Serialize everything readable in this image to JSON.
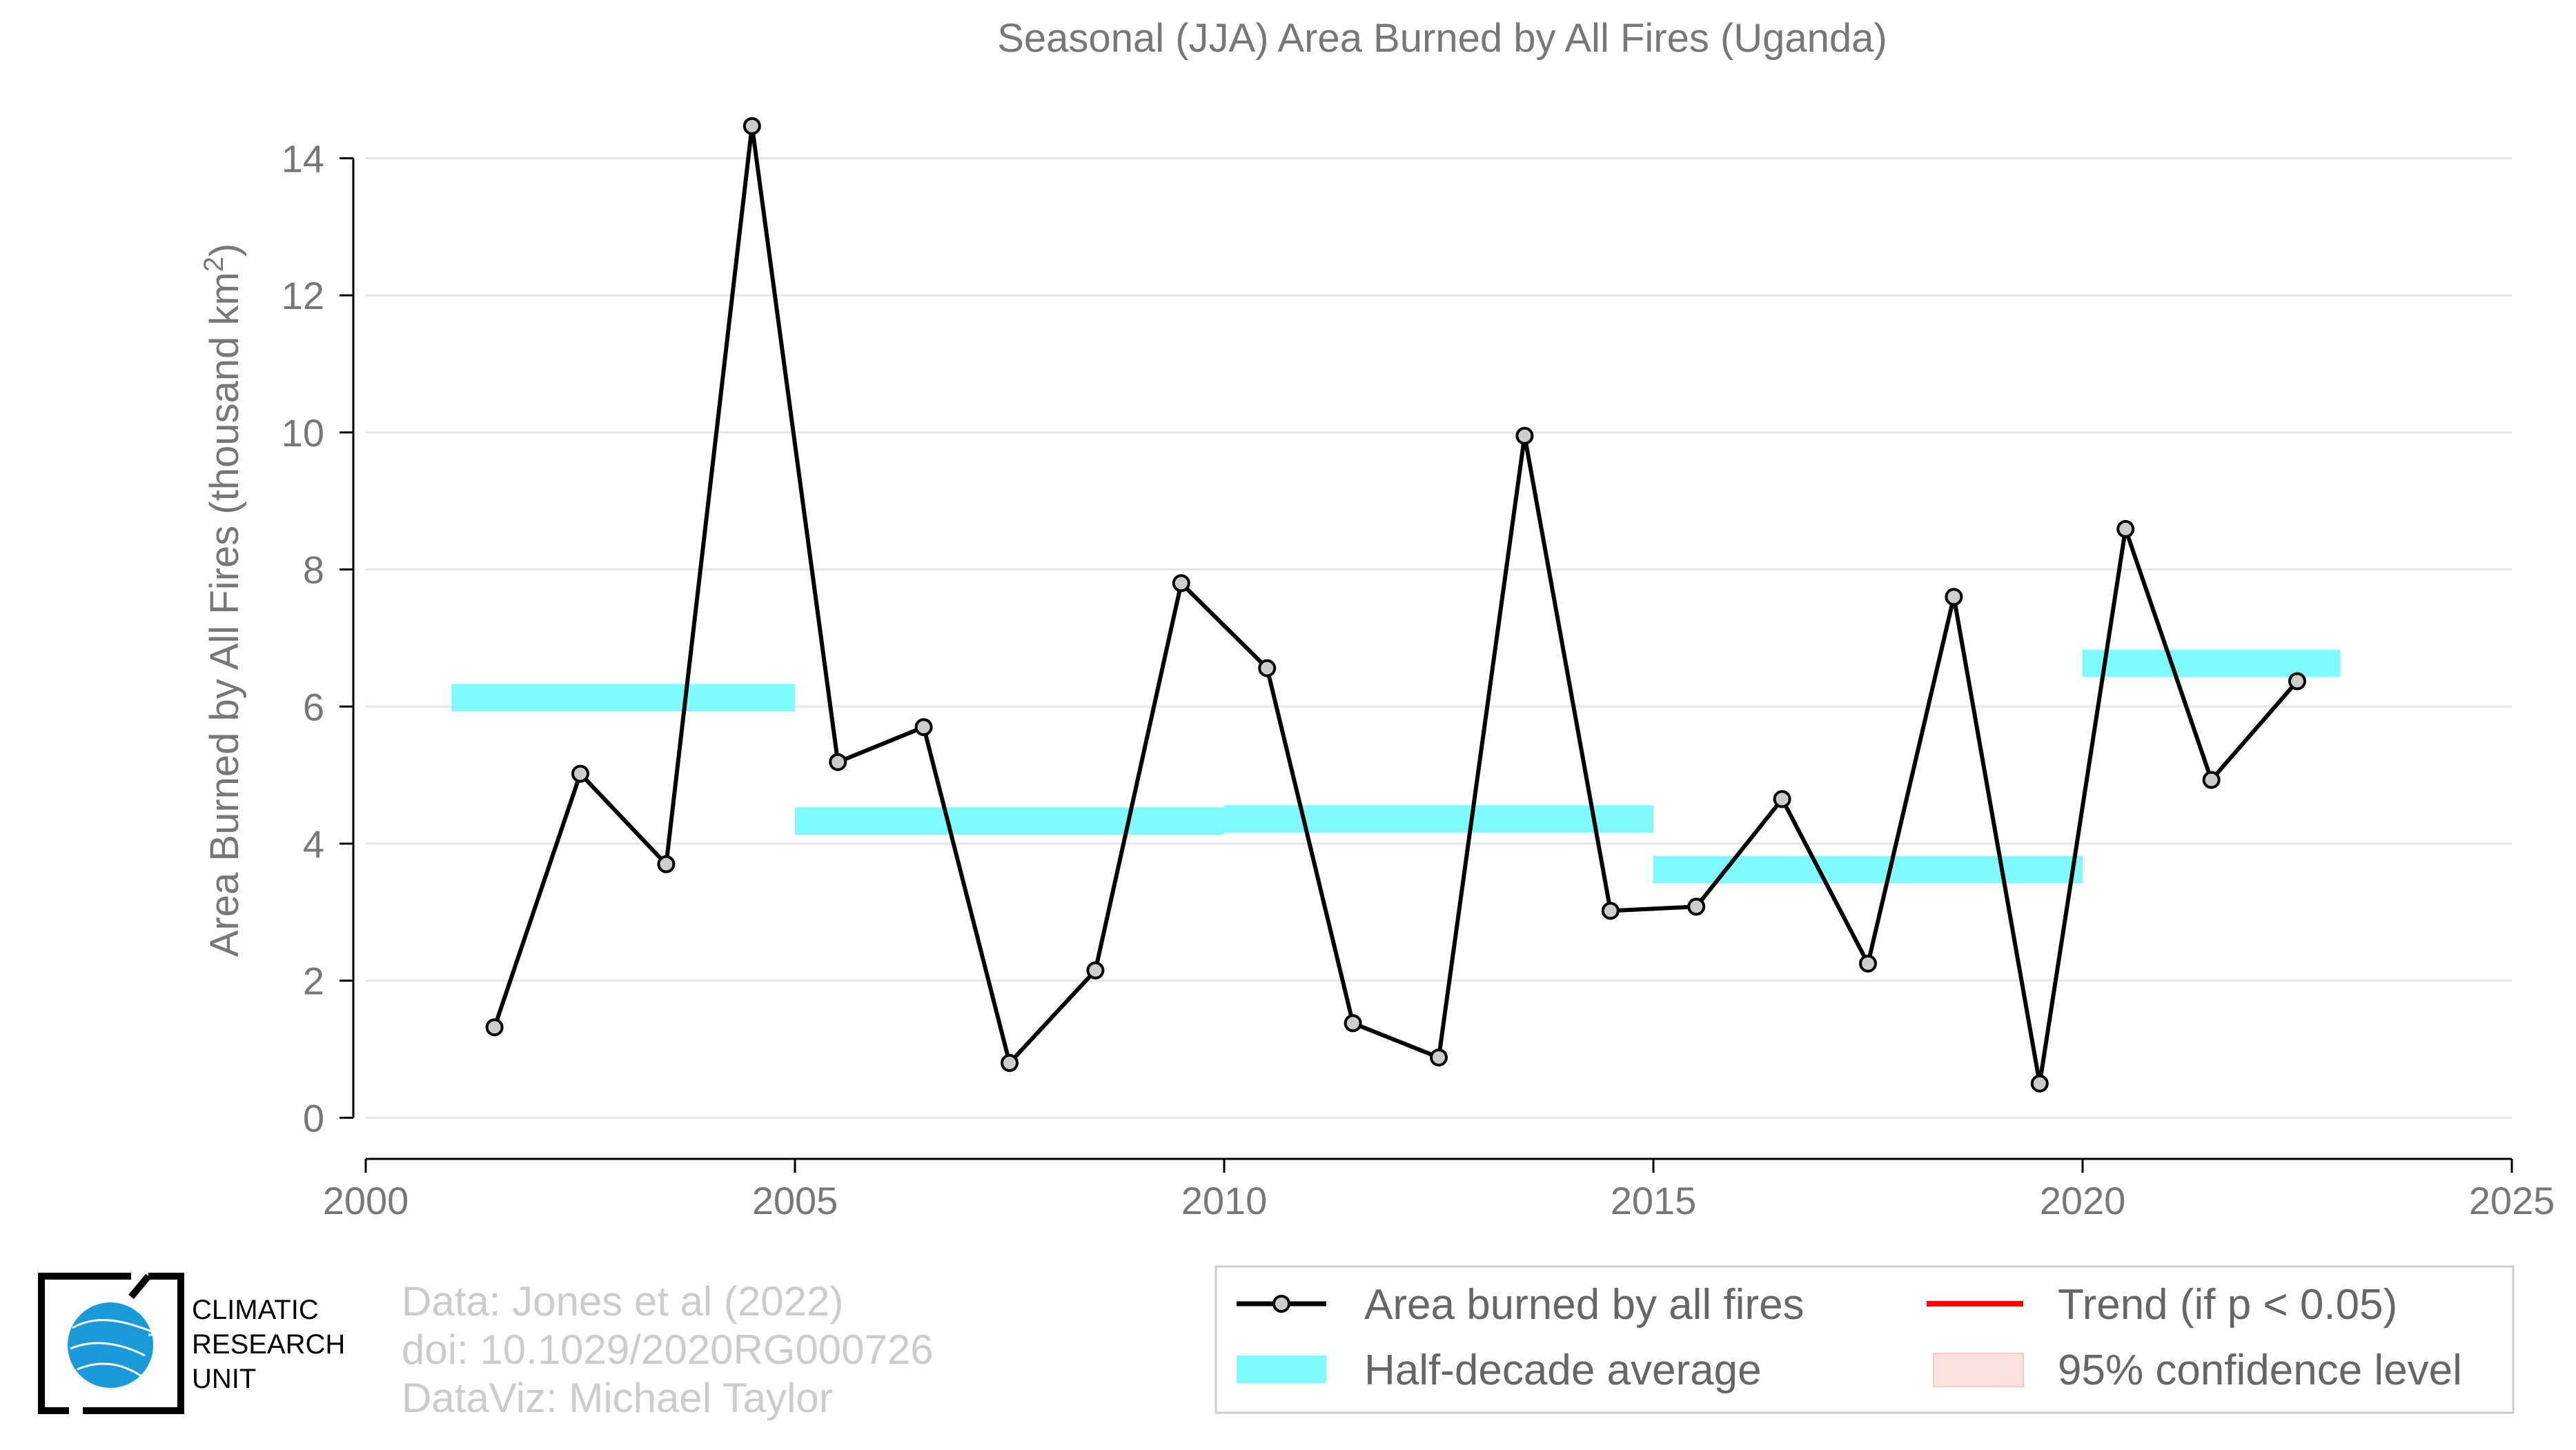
{
  "chart_data": {
    "type": "line",
    "title": "Seasonal (JJA) Area Burned by All Fires (Uganda)",
    "ylabel": "Area Burned by All Fires (thousand km",
    "ylabel_sup": "2",
    "ylabel_close": ")",
    "xlabel": "",
    "xlim": [
      2000,
      2025
    ],
    "ylim": [
      -0.6,
      14.9
    ],
    "x_ticks": [
      2000,
      2005,
      2010,
      2015,
      2020,
      2025
    ],
    "y_ticks": [
      0,
      2,
      4,
      6,
      8,
      10,
      12,
      14
    ],
    "grid": true,
    "series": [
      {
        "name": "Area burned by all fires",
        "color": "#000000",
        "marker_fill": "#cccccc",
        "x": [
          2001.5,
          2002.5,
          2003.5,
          2004.5,
          2005.5,
          2006.5,
          2007.5,
          2008.5,
          2009.5,
          2010.5,
          2011.5,
          2012.5,
          2013.5,
          2014.5,
          2015.5,
          2016.5,
          2017.5,
          2018.5,
          2019.5,
          2020.5,
          2021.5,
          2022.5
        ],
        "y": [
          1.32,
          5.02,
          3.7,
          14.47,
          5.19,
          5.7,
          0.8,
          2.15,
          7.8,
          6.56,
          1.38,
          0.88,
          9.95,
          3.02,
          3.08,
          4.65,
          2.25,
          7.6,
          0.5,
          8.59,
          4.93,
          6.37
        ]
      }
    ],
    "half_decade_average": {
      "name": "Half-decade average",
      "color": "#7ffaff",
      "segments": [
        {
          "x0": 2001,
          "x1": 2005,
          "y": 6.13
        },
        {
          "x0": 2005,
          "x1": 2010,
          "y": 4.33
        },
        {
          "x0": 2010,
          "x1": 2015,
          "y": 4.36
        },
        {
          "x0": 2015,
          "x1": 2020,
          "y": 3.62
        },
        {
          "x0": 2020,
          "x1": 2023,
          "y": 6.63
        }
      ]
    },
    "legend": {
      "placement": "bottom-right",
      "entries": [
        {
          "key": "line",
          "label": "Area burned by all fires"
        },
        {
          "key": "trend",
          "label": "Trend (if p < 0.05)",
          "color": "#ff0000"
        },
        {
          "key": "band",
          "label": "Half-decade average"
        },
        {
          "key": "ci",
          "label": "95% confidence level",
          "color": "#fde0e0"
        }
      ]
    }
  },
  "credits": {
    "line1": "Data: Jones et al (2022)",
    "line2": "doi: 10.1029/2020RG000726",
    "line3": "DataViz: Michael Taylor"
  },
  "logo": {
    "line1": "CLIMATIC",
    "line2": "RESEARCH",
    "line3": "UNIT",
    "globe_color": "#1a9ad9"
  }
}
